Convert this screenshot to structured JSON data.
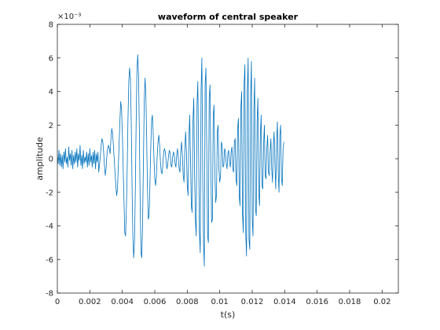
{
  "chart_data": {
    "type": "line",
    "title": "waveform of central speaker",
    "xlabel": "t(s)",
    "ylabel": "amplitude",
    "y_exponent_label": "×10⁻³",
    "xlim": [
      0,
      0.021
    ],
    "ylim": [
      -8,
      8
    ],
    "y_unit_scale": 0.001,
    "x_ticks": [
      0,
      0.002,
      0.004,
      0.006,
      0.008,
      0.01,
      0.012,
      0.014,
      0.016,
      0.018,
      0.02
    ],
    "x_tick_labels": [
      "0",
      "0.002",
      "0.004",
      "0.006",
      "0.008",
      "0.01",
      "0.012",
      "0.014",
      "0.016",
      "0.018",
      "0.02"
    ],
    "y_ticks": [
      -8,
      -6,
      -4,
      -2,
      0,
      2,
      4,
      6,
      8
    ],
    "y_tick_labels": [
      "-8",
      "-6",
      "-4",
      "-2",
      "0",
      "2",
      "4",
      "6",
      "8"
    ],
    "grid": false,
    "line_color": "#0072BD",
    "series": [
      {
        "x_step": 5e-05,
        "values": [
          0.2,
          -0.3,
          0.5,
          -0.4,
          0.3,
          -0.5,
          0.2,
          -0.6,
          0.4,
          -0.2,
          0.6,
          -0.3,
          0.1,
          -0.5,
          0.7,
          -0.1,
          0.3,
          -0.4,
          0.5,
          -0.6,
          0.2,
          -0.3,
          0.4,
          -0.2,
          0.6,
          -0.5,
          0.3,
          -0.1,
          0.8,
          -0.4,
          0.2,
          -0.6,
          0.5,
          -0.3,
          0.1,
          -0.2,
          0.4,
          -0.5,
          0.3,
          -0.4,
          0.6,
          -0.2,
          0.2,
          -0.5,
          0.4,
          -0.3,
          0.5,
          -0.6,
          0.3,
          -0.2,
          0.4,
          -0.8,
          -0.3,
          0.2,
          0.8,
          1.2,
          1.0,
          0.4,
          -0.4,
          -1.0,
          -0.6,
          0.2,
          0.6,
          0.8,
          0.6,
          0.3,
          1.2,
          1.8,
          1.5,
          0.8,
          0.0,
          -0.8,
          -1.6,
          -2.2,
          -1.8,
          -0.6,
          0.8,
          2.2,
          3.4,
          3.0,
          1.6,
          -0.4,
          -2.4,
          -4.4,
          -4.6,
          -3.0,
          -0.6,
          2.4,
          4.6,
          5.4,
          4.8,
          2.2,
          -1.6,
          -4.6,
          -5.9,
          -5.0,
          -2.0,
          2.0,
          5.2,
          6.2,
          5.0,
          1.6,
          -2.6,
          -5.6,
          -5.9,
          -3.8,
          -0.2,
          3.4,
          4.8,
          3.8,
          1.2,
          -1.8,
          -3.6,
          -3.4,
          -1.6,
          0.6,
          2.2,
          2.6,
          1.6,
          0.0,
          -1.2,
          -1.6,
          -1.0,
          0.2,
          1.0,
          1.4,
          0.8,
          -0.2,
          -0.8,
          -0.9,
          -0.3,
          0.4,
          0.6,
          0.4,
          -0.2,
          -0.6,
          -0.3,
          0.2,
          0.5,
          0.3,
          -0.4,
          -0.5,
          0.1,
          0.4,
          0.2,
          -0.3,
          -0.5,
          0.2,
          0.6,
          0.0,
          -0.6,
          -0.8,
          0.4,
          1.0,
          0.2,
          -1.0,
          -1.4,
          0.6,
          1.6,
          0.4,
          -1.6,
          -2.2,
          1.2,
          2.6,
          0.0,
          -2.8,
          -3.2,
          2.2,
          3.6,
          -0.8,
          -3.6,
          -4.6,
          3.2,
          4.6,
          0.4,
          -4.4,
          -5.6,
          4.0,
          6.0,
          -0.6,
          -5.0,
          -6.4,
          4.4,
          5.4,
          0.6,
          -4.6,
          -5.0,
          3.6,
          4.4,
          -0.4,
          -3.8,
          -3.6,
          2.6,
          3.2,
          -0.8,
          -2.6,
          -2.2,
          1.6,
          2.0,
          -0.6,
          -1.4,
          -1.0,
          1.0,
          0.8,
          -0.5,
          -0.4,
          0.6,
          0.4,
          -0.3,
          -0.6,
          0.3,
          0.5,
          -0.2,
          -0.5,
          0.4,
          0.7,
          -0.6,
          -0.8,
          1.0,
          1.2,
          -1.2,
          -1.6,
          1.8,
          2.4,
          -2.2,
          -2.8,
          3.0,
          4.0,
          -3.2,
          -4.4,
          4.4,
          5.6,
          -4.4,
          -5.8,
          4.0,
          6.0,
          -4.8,
          -5.4,
          3.6,
          5.8,
          -3.6,
          -4.6,
          2.8,
          4.8,
          -3.0,
          -3.4,
          2.2,
          3.6,
          -2.0,
          -2.8,
          1.4,
          2.6,
          -1.6,
          -1.8,
          0.8,
          2.0,
          -1.0,
          -1.2,
          0.6,
          1.4,
          -0.8,
          -1.0,
          0.4,
          1.2,
          -0.6,
          -1.4,
          0.8,
          1.6,
          -0.4,
          -1.8,
          1.0,
          2.2,
          -0.8,
          -2.0,
          1.4,
          2.0,
          -1.2,
          -1.6,
          0.6,
          1.0
        ]
      }
    ]
  }
}
